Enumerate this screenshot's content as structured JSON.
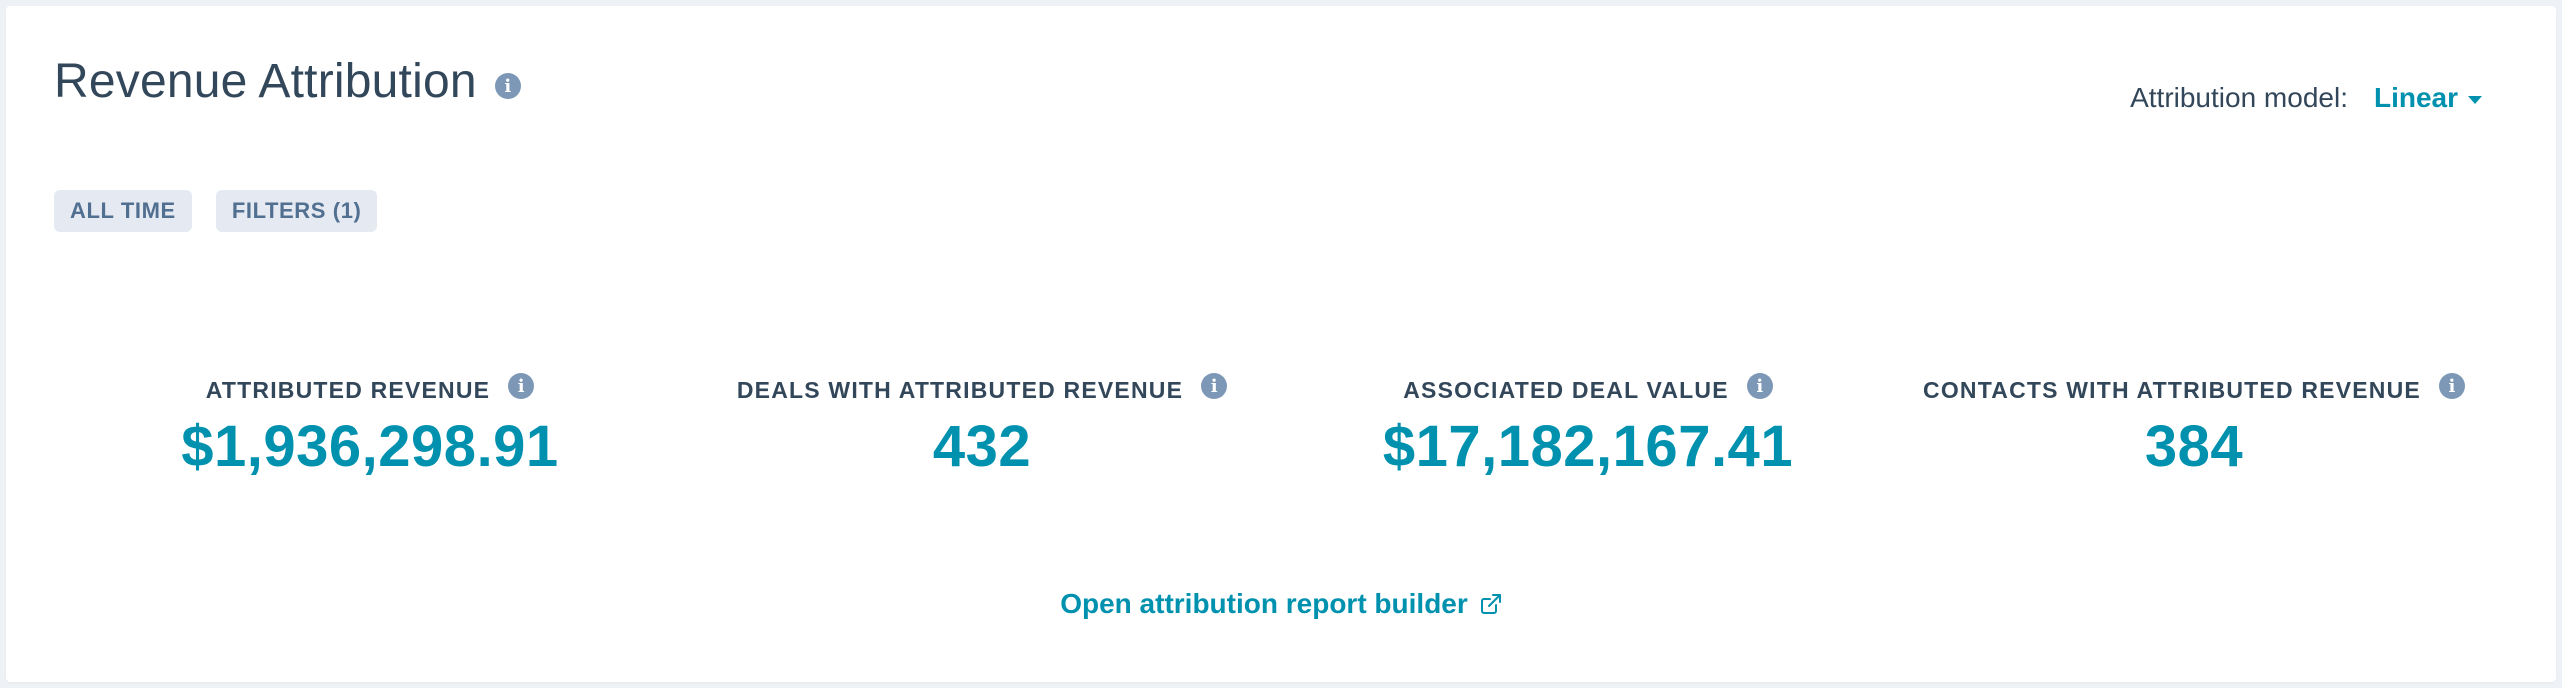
{
  "header": {
    "title": "Revenue Attribution",
    "info_icon": "info-icon"
  },
  "attribution_model": {
    "label": "Attribution model:",
    "value": "Linear",
    "icon": "caret-down-icon"
  },
  "chips": [
    {
      "label": "ALL TIME"
    },
    {
      "label": "FILTERS (1)"
    }
  ],
  "stats": [
    {
      "label": "ATTRIBUTED REVENUE",
      "value": "$1,936,298.91"
    },
    {
      "label": "DEALS WITH ATTRIBUTED REVENUE",
      "value": "432"
    },
    {
      "label": "ASSOCIATED DEAL VALUE",
      "value": "$17,182,167.41"
    },
    {
      "label": "CONTACTS WITH ATTRIBUTED REVENUE",
      "value": "384"
    }
  ],
  "footer": {
    "link_label": "Open attribution report builder",
    "icon": "external-link-icon"
  },
  "colors": {
    "accent": "#0091ae",
    "text": "#33475b",
    "info_icon": "#7c98b6",
    "chip_bg": "#e5eaf2",
    "background": "#eef1f5"
  }
}
